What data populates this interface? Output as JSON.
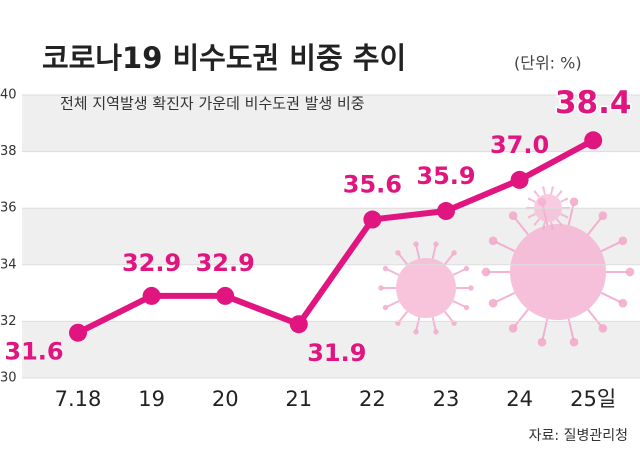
{
  "chart_data": {
    "type": "line",
    "title": "코로나19 비수도권 비중 추이",
    "unit": "(단위: %)",
    "subtitle": "전체 지역발생 확진자 가운데 비수도권 발생 비중",
    "source": "자료: 질병관리청",
    "categories": [
      "7.18",
      "19",
      "20",
      "21",
      "22",
      "23",
      "24",
      "25일"
    ],
    "values": [
      31.6,
      32.9,
      32.9,
      31.9,
      35.6,
      35.9,
      37.0,
      38.4
    ],
    "value_labels": [
      "31.6",
      "32.9",
      "32.9",
      "31.9",
      "35.6",
      "35.9",
      "37.0",
      "38.4"
    ],
    "color": "#e0157f",
    "ylim": [
      30,
      40
    ],
    "yticks": [
      30,
      32,
      34,
      36,
      38,
      40
    ],
    "grid": true
  }
}
